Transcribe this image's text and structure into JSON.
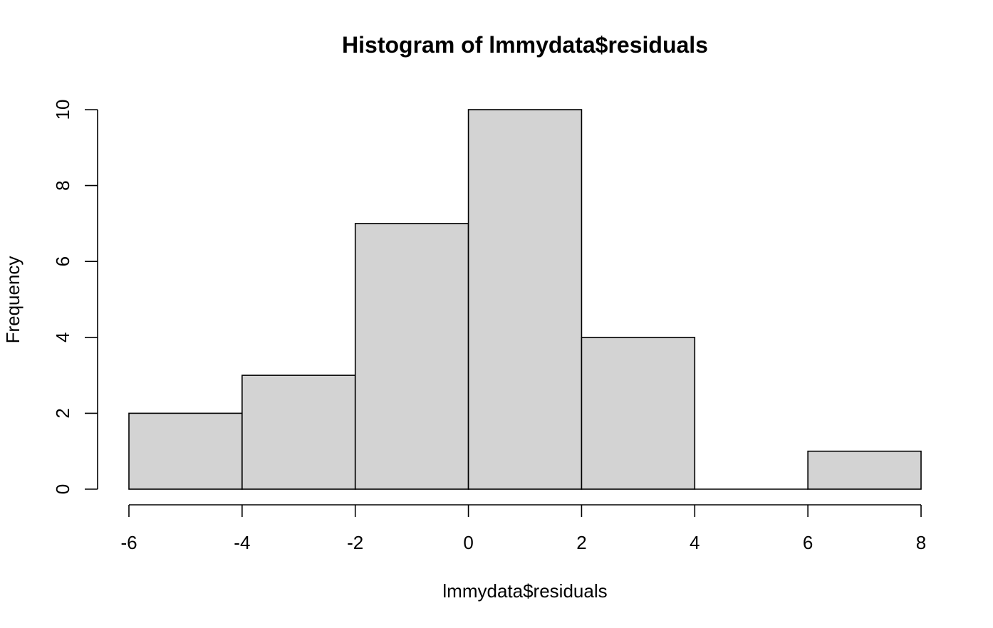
{
  "chart_data": {
    "type": "bar",
    "title": "Histogram of lmmydata$residuals",
    "xlabel": "lmmydata$residuals",
    "ylabel": "Frequency",
    "bins": [
      {
        "start": -6,
        "end": -4,
        "count": 2
      },
      {
        "start": -4,
        "end": -2,
        "count": 3
      },
      {
        "start": -2,
        "end": 0,
        "count": 7
      },
      {
        "start": 0,
        "end": 2,
        "count": 10
      },
      {
        "start": 2,
        "end": 4,
        "count": 4
      },
      {
        "start": 4,
        "end": 6,
        "count": 0
      },
      {
        "start": 6,
        "end": 8,
        "count": 1
      }
    ],
    "xlim": [
      -6,
      8
    ],
    "ylim": [
      0,
      10
    ],
    "xticks": [
      -6,
      -4,
      -2,
      0,
      2,
      4,
      6,
      8
    ],
    "yticks": [
      0,
      2,
      4,
      6,
      8,
      10
    ],
    "bar_fill": "#d3d3d3",
    "bar_stroke": "#000000",
    "grid": false,
    "legend": "none"
  }
}
